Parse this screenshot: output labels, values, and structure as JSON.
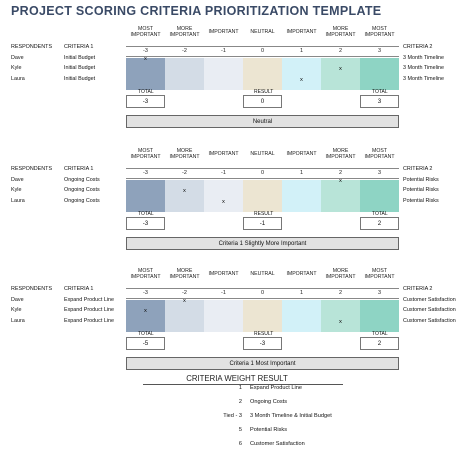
{
  "title": "PROJECT SCORING CRITERIA PRIORITIZATION TEMPLATE",
  "scale_headers": [
    "MOST IMPORTANT",
    "MORE IMPORTANT",
    "IMPORTANT",
    "NEUTRAL",
    "IMPORTANT",
    "MORE IMPORTANT",
    "MOST IMPORTANT"
  ],
  "scale_values": [
    "-3",
    "-2",
    "-1",
    "0",
    "1",
    "2",
    "3"
  ],
  "scale_colors": [
    "#8ea2bb",
    "#d3dce6",
    "#e9edf3",
    "#ece5d2",
    "#d2f1f8",
    "#b8e4d8",
    "#8ed4c4"
  ],
  "labels": {
    "respondents": "RESPONDENTS",
    "criteria1": "CRITERIA 1",
    "criteria2": "CRITERIA 2",
    "total": "TOTAL",
    "result": "RESULT",
    "mark": "x"
  },
  "sections": [
    {
      "respondents": [
        {
          "name": "Dave",
          "c1": "Initial Budget",
          "c2": "3 Month Timeline",
          "mark": 0
        },
        {
          "name": "Kyle",
          "c1": "Initial Budget",
          "c2": "3 Month Timeline",
          "mark": 5
        },
        {
          "name": "Laura",
          "c1": "Initial Budget",
          "c2": "3 Month Timeline",
          "mark": 4
        }
      ],
      "total_left": "-3",
      "result": "0",
      "total_right": "3",
      "result_text": "Neutral"
    },
    {
      "respondents": [
        {
          "name": "Dave",
          "c1": "Ongoing Costs",
          "c2": "Potential Risks",
          "mark": 5
        },
        {
          "name": "Kyle",
          "c1": "Ongoing Costs",
          "c2": "Potential Risks",
          "mark": 1
        },
        {
          "name": "Laura",
          "c1": "Ongoing Costs",
          "c2": "Potential Risks",
          "mark": 2
        }
      ],
      "total_left": "-3",
      "result": "-1",
      "total_right": "2",
      "result_text": "Criteria 1 Slightly More Important"
    },
    {
      "respondents": [
        {
          "name": "Dave",
          "c1": "Expand Product Line",
          "c2": "Customer Satisfaction",
          "mark": 1
        },
        {
          "name": "Kyle",
          "c1": "Expand Product Line",
          "c2": "Customer Satisfaction",
          "mark": 0
        },
        {
          "name": "Laura",
          "c1": "Expand Product Line",
          "c2": "Customer Satisfaction",
          "mark": 5
        }
      ],
      "total_left": "-5",
      "result": "-3",
      "total_right": "2",
      "result_text": "Criteria 1 Most Important"
    }
  ],
  "weight_result": {
    "title": "CRITERIA WEIGHT RESULT",
    "rows": [
      {
        "rank": "1",
        "name": "Expand Product Line"
      },
      {
        "rank": "2",
        "name": "Ongoing Costs"
      },
      {
        "rank": "Tied - 3",
        "name": "3 Month Timeline & Initial Budget"
      },
      {
        "rank": "5",
        "name": "Potential Risks"
      },
      {
        "rank": "6",
        "name": "Customer Satisfaction"
      }
    ]
  }
}
